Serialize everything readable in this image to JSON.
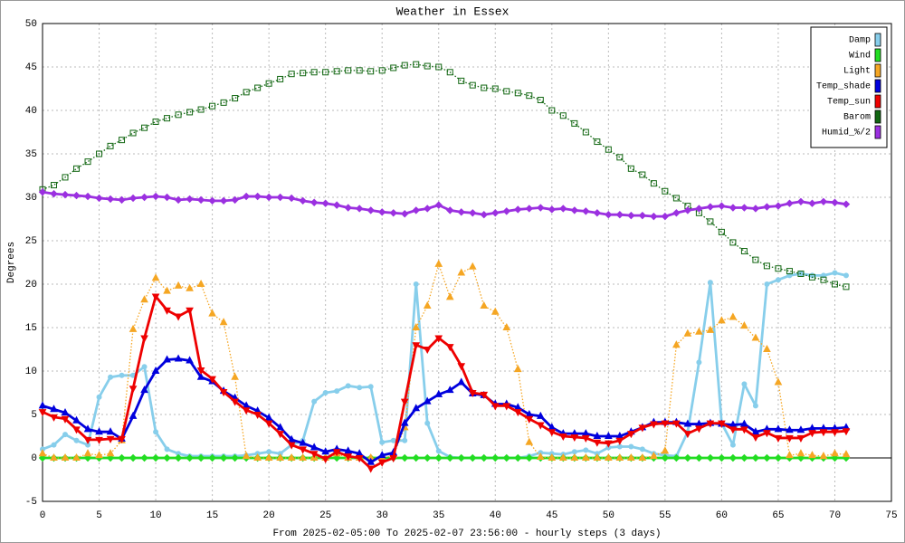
{
  "chart_data": {
    "type": "line",
    "title": "Weather in Essex",
    "x_label": "From 2025-02-05:00 To 2025-02-07 23:56:00 - hourly steps (3 days)",
    "y_label": "Degrees",
    "x": [
      0,
      1,
      2,
      3,
      4,
      5,
      6,
      7,
      8,
      9,
      10,
      11,
      12,
      13,
      14,
      15,
      16,
      17,
      18,
      19,
      20,
      21,
      22,
      23,
      24,
      25,
      26,
      27,
      28,
      29,
      30,
      31,
      32,
      33,
      34,
      35,
      36,
      37,
      38,
      39,
      40,
      41,
      42,
      43,
      44,
      45,
      46,
      47,
      48,
      49,
      50,
      51,
      52,
      53,
      54,
      55,
      56,
      57,
      58,
      59,
      60,
      61,
      62,
      63,
      64,
      65,
      66,
      67,
      68,
      69,
      70,
      71
    ],
    "xlim": [
      0,
      75
    ],
    "xticks": [
      0,
      5,
      10,
      15,
      20,
      25,
      30,
      35,
      40,
      45,
      50,
      55,
      60,
      65,
      70,
      75
    ],
    "ylim": [
      -5,
      50
    ],
    "yticks": [
      -5,
      0,
      5,
      10,
      15,
      20,
      25,
      30,
      35,
      40,
      45,
      50
    ],
    "grid": true,
    "legend": "upper right",
    "series": [
      {
        "name": "Damp",
        "color": "#87ceeb",
        "marker": "circle",
        "dash": "solid",
        "values": [
          1.0,
          1.5,
          2.7,
          2.0,
          1.5,
          7.0,
          9.3,
          9.5,
          9.5,
          10.5,
          3.0,
          1.0,
          0.5,
          0.2,
          0.2,
          0.2,
          0.2,
          0.2,
          0.3,
          0.5,
          0.7,
          0.5,
          1.5,
          2.0,
          6.5,
          7.5,
          7.7,
          8.3,
          8.1,
          8.2,
          1.8,
          2.0,
          2.0,
          20.0,
          4.0,
          0.8,
          0.1,
          0.0,
          0.0,
          0.0,
          0.0,
          0.0,
          0.0,
          0.2,
          0.6,
          0.5,
          0.4,
          0.7,
          0.9,
          0.5,
          1.2,
          1.3,
          1.3,
          1.0,
          0.5,
          0.3,
          0.2,
          3.0,
          11.0,
          20.2,
          4.0,
          1.5,
          8.5,
          6.0,
          20.0,
          20.5,
          21.0,
          21.2,
          21.0,
          21.0,
          21.3,
          21.0
        ]
      },
      {
        "name": "Wind",
        "color": "#22dd22",
        "marker": "diamond",
        "dash": "solid",
        "values": [
          0,
          0,
          0,
          0,
          0,
          0,
          0,
          0,
          0,
          0,
          0,
          0,
          0,
          0,
          0,
          0,
          0,
          0,
          0,
          0,
          0,
          0,
          0,
          0,
          0,
          0,
          0,
          0,
          0,
          0,
          0,
          0,
          0,
          0,
          0,
          0,
          0,
          0,
          0,
          0,
          0,
          0,
          0,
          0,
          0,
          0,
          0,
          0,
          0,
          0,
          0,
          0,
          0,
          0,
          0,
          0,
          0,
          0,
          0,
          0,
          0,
          0,
          0,
          0,
          0,
          0,
          0,
          0,
          0,
          0,
          0,
          0
        ]
      },
      {
        "name": "Light",
        "color": "#f5a623",
        "marker": "triangle-up",
        "dash": "dotted",
        "values": [
          0.5,
          0,
          0,
          0,
          0.5,
          0.3,
          0.5,
          2.0,
          14.8,
          18.2,
          20.7,
          19.2,
          19.8,
          19.5,
          20.0,
          16.6,
          15.6,
          9.3,
          0.2,
          0,
          0,
          0,
          0,
          0,
          0,
          0,
          0.5,
          0,
          0,
          0,
          0,
          0.3,
          3.5,
          15.0,
          17.5,
          22.3,
          18.5,
          21.3,
          22.0,
          17.5,
          16.8,
          15.0,
          10.2,
          1.8,
          0.1,
          0,
          0,
          0,
          0,
          0,
          0,
          0,
          0,
          0,
          0.2,
          0.8,
          13.0,
          14.3,
          14.5,
          14.7,
          15.8,
          16.2,
          15.2,
          13.8,
          12.5,
          8.7,
          0.3,
          0.5,
          0.3,
          0.2,
          0.5,
          0.4
        ]
      },
      {
        "name": "Temp_shade",
        "color": "#0000dd",
        "marker": "triangle-up",
        "dash": "solid",
        "values": [
          6.0,
          5.6,
          5.2,
          4.3,
          3.3,
          3.0,
          3.0,
          2.2,
          4.8,
          7.8,
          10.0,
          11.3,
          11.4,
          11.2,
          9.3,
          8.8,
          7.7,
          6.9,
          6.0,
          5.4,
          4.6,
          3.5,
          2.1,
          1.7,
          1.2,
          0.7,
          1.0,
          0.8,
          0.5,
          -0.5,
          0.3,
          0.6,
          4.0,
          5.7,
          6.5,
          7.3,
          7.8,
          8.7,
          7.4,
          7.2,
          6.2,
          6.2,
          5.8,
          5.0,
          4.8,
          3.5,
          2.8,
          2.8,
          2.8,
          2.5,
          2.5,
          2.5,
          3.0,
          3.5,
          4.1,
          4.1,
          4.1,
          3.9,
          3.9,
          4.0,
          3.9,
          3.8,
          3.9,
          3.0,
          3.3,
          3.3,
          3.2,
          3.2,
          3.4,
          3.4,
          3.4,
          3.5
        ]
      },
      {
        "name": "Temp_sun",
        "color": "#ee0000",
        "marker": "triangle-down",
        "dash": "solid",
        "values": [
          5.3,
          4.7,
          4.5,
          3.3,
          2.1,
          2.1,
          2.2,
          2.2,
          8.0,
          13.8,
          18.6,
          17.0,
          16.3,
          17.0,
          10.1,
          9.1,
          7.6,
          6.5,
          5.5,
          5.0,
          4.0,
          2.8,
          1.5,
          1.0,
          0.5,
          -0.1,
          0.7,
          0.2,
          0.0,
          -1.2,
          -0.5,
          0.0,
          6.5,
          13.0,
          12.5,
          13.8,
          12.8,
          10.6,
          7.5,
          7.3,
          6.0,
          6.0,
          5.3,
          4.5,
          3.8,
          3.0,
          2.5,
          2.4,
          2.3,
          1.8,
          1.7,
          2.0,
          2.8,
          3.5,
          3.9,
          4.0,
          4.0,
          2.8,
          3.4,
          4.0,
          4.0,
          3.3,
          3.3,
          2.4,
          2.9,
          2.3,
          2.3,
          2.3,
          2.9,
          3.0,
          3.0,
          3.1
        ]
      },
      {
        "name": "Barom",
        "color": "#116611",
        "marker": "square-open",
        "dash": "dotted",
        "values": [
          30.9,
          31.4,
          32.3,
          33.3,
          34.1,
          35.0,
          35.9,
          36.6,
          37.4,
          38.0,
          38.7,
          39.1,
          39.5,
          39.8,
          40.1,
          40.5,
          40.9,
          41.4,
          42.1,
          42.6,
          43.1,
          43.6,
          44.2,
          44.3,
          44.4,
          44.4,
          44.5,
          44.6,
          44.6,
          44.5,
          44.6,
          44.9,
          45.2,
          45.3,
          45.1,
          45.0,
          44.4,
          43.4,
          42.9,
          42.6,
          42.5,
          42.2,
          42.0,
          41.7,
          41.2,
          40.0,
          39.4,
          38.5,
          37.5,
          36.4,
          35.5,
          34.6,
          33.3,
          32.6,
          31.6,
          30.7,
          29.9,
          29.0,
          28.2,
          27.2,
          26.0,
          24.8,
          23.8,
          22.8,
          22.1,
          21.8,
          21.5,
          21.2,
          20.8,
          20.5,
          20.0,
          19.7
        ]
      },
      {
        "name": "Humid_%/2",
        "color": "#9b30e0",
        "marker": "diamond",
        "dash": "solid",
        "values": [
          30.6,
          30.4,
          30.3,
          30.2,
          30.1,
          29.9,
          29.8,
          29.7,
          29.9,
          30.0,
          30.1,
          30.0,
          29.7,
          29.8,
          29.7,
          29.6,
          29.6,
          29.7,
          30.1,
          30.1,
          30.0,
          30.0,
          29.9,
          29.6,
          29.4,
          29.3,
          29.1,
          28.8,
          28.7,
          28.5,
          28.3,
          28.2,
          28.1,
          28.5,
          28.7,
          29.1,
          28.5,
          28.3,
          28.2,
          28.0,
          28.2,
          28.4,
          28.6,
          28.7,
          28.8,
          28.6,
          28.7,
          28.5,
          28.4,
          28.2,
          28.0,
          28.0,
          27.9,
          27.9,
          27.8,
          27.8,
          28.2,
          28.5,
          28.7,
          28.9,
          29.0,
          28.8,
          28.8,
          28.7,
          28.9,
          29.0,
          29.3,
          29.5,
          29.3,
          29.5,
          29.4,
          29.2
        ]
      }
    ]
  }
}
